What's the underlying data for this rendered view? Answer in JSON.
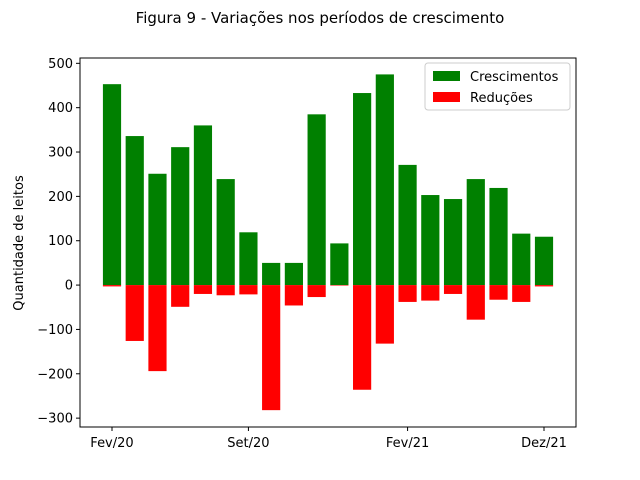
{
  "chart_data": {
    "type": "bar",
    "title": "Figura 9 - Variações nos períodos de crescimento",
    "xlabel": "",
    "ylabel": "Quantidade de leitos",
    "ylim": [
      -320,
      512
    ],
    "yticks": [
      500,
      400,
      300,
      200,
      100,
      0,
      -100,
      -200,
      -300
    ],
    "xticks": [
      {
        "index": 0,
        "label": "Fev/20"
      },
      {
        "index": 6,
        "label": "Set/20"
      },
      {
        "index": 13,
        "label": "Fev/21"
      },
      {
        "index": 19,
        "label": "Dez/21"
      }
    ],
    "grid": false,
    "legend_position": "top-right",
    "series": [
      {
        "name": "Crescimentos",
        "color": "#008000",
        "values": [
          453,
          336,
          251,
          311,
          360,
          239,
          119,
          50,
          50,
          385,
          94,
          433,
          475,
          271,
          203,
          194,
          239,
          219,
          116,
          109
        ]
      },
      {
        "name": "Reduções",
        "color": "#ff0000",
        "values": [
          -3,
          -126,
          -194,
          -49,
          -20,
          -23,
          -21,
          -282,
          -46,
          -27,
          0,
          -236,
          -132,
          -38,
          -35,
          -20,
          -78,
          -33,
          -38,
          -3
        ]
      }
    ]
  }
}
